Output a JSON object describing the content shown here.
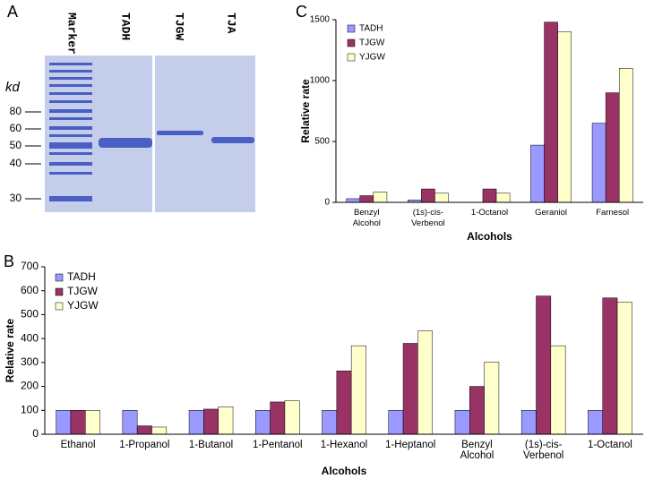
{
  "gel": {
    "panel_label": "A",
    "unit": "kd",
    "lanes": [
      "Marker",
      "TADH",
      "TJGW",
      "TJA"
    ],
    "marker_labels": [
      "80",
      "60",
      "50",
      "40",
      "30"
    ]
  },
  "chart_data": [
    {
      "type": "bar",
      "panel_label": "C",
      "x_label": "Alcohols",
      "y_label": "Relative rate",
      "categories": [
        "Benzyl Alcohol",
        "(1s)-cis-Verbenol",
        "1-Octanol",
        "Geraniol",
        "Farnesol"
      ],
      "series": [
        {
          "name": "TADH",
          "color": "#9999ff",
          "values": [
            30,
            20,
            0,
            470,
            650
          ]
        },
        {
          "name": "TJGW",
          "color": "#993366",
          "values": [
            55,
            110,
            110,
            1480,
            900
          ]
        },
        {
          "name": "YJGW",
          "color": "#ffffcc",
          "values": [
            85,
            75,
            75,
            1400,
            1100
          ]
        }
      ],
      "ylim": [
        0,
        1500
      ],
      "yticks": [
        0,
        500,
        1000,
        1500
      ],
      "legend": "upper left"
    },
    {
      "type": "bar",
      "panel_label": "B",
      "x_label": "Alcohols",
      "y_label": "Relative rate",
      "categories": [
        "Ethanol",
        "1-Propanol",
        "1-Butanol",
        "1-Pentanol",
        "1-Hexanol",
        "1-Heptanol",
        "Benzyl Alcohol",
        "(1s)-cis-Verbenol",
        "1-Octanol"
      ],
      "series": [
        {
          "name": "TADH",
          "color": "#9999ff",
          "values": [
            100,
            100,
            100,
            100,
            100,
            100,
            100,
            100,
            100
          ]
        },
        {
          "name": "TJGW",
          "color": "#993366",
          "values": [
            100,
            35,
            105,
            135,
            265,
            380,
            200,
            578,
            570
          ]
        },
        {
          "name": "YJGW",
          "color": "#ffffcc",
          "values": [
            100,
            30,
            115,
            140,
            370,
            432,
            302,
            370,
            553
          ]
        }
      ],
      "ylim": [
        0,
        700
      ],
      "yticks": [
        0,
        100,
        200,
        300,
        400,
        500,
        600,
        700
      ],
      "legend": "upper left"
    }
  ]
}
